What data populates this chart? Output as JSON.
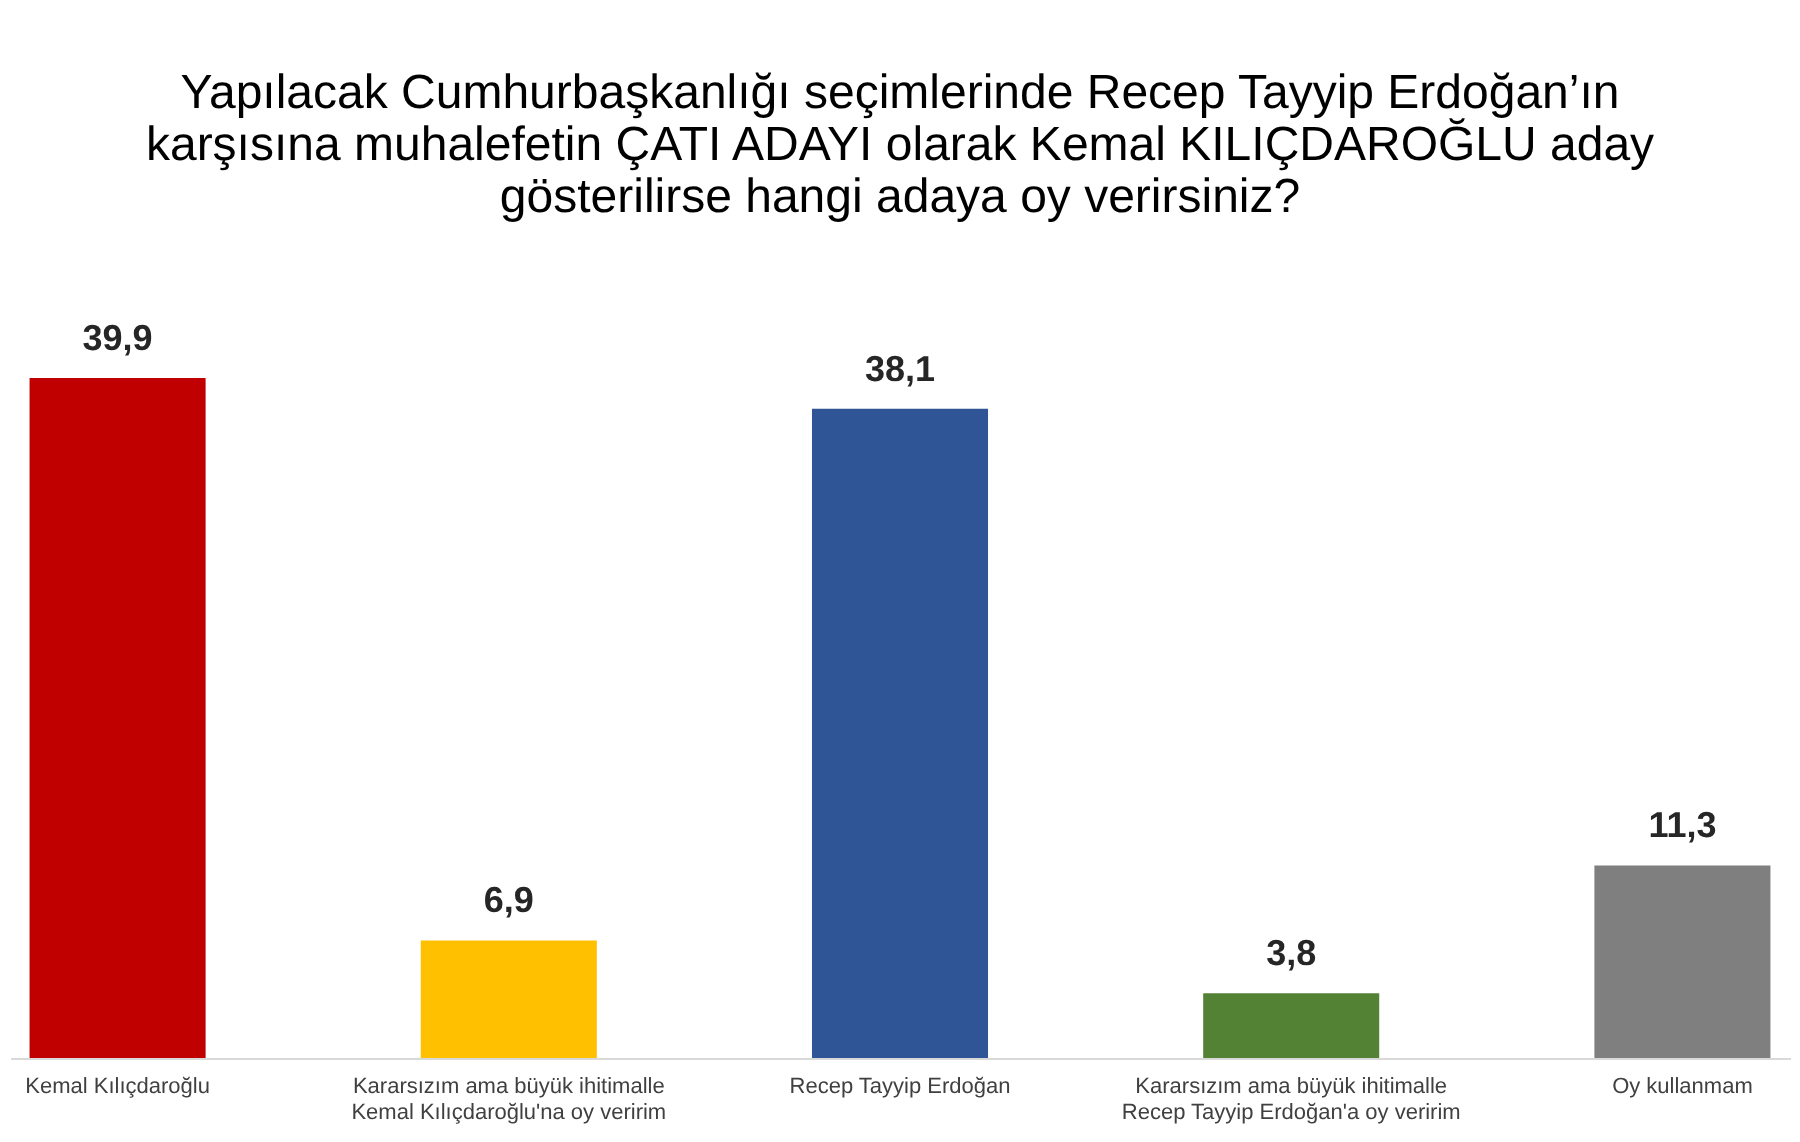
{
  "chart_data": {
    "type": "bar",
    "title": "Yapılacak Cumhurbaşkanlığı seçimlerinde  Recep Tayyip Erdoğan’ın\nkarşısına muhalefetin ÇATI ADAYI olarak Kemal KILIÇDAROĞLU aday\ngösterilirse hangi adaya oy verirsiniz?",
    "categories": [
      "Kemal Kılıçdaroğlu",
      "Kararsızım ama büyük ihitimalle\nKemal Kılıçdaroğlu'na oy veririm",
      "Recep Tayyip Erdoğan",
      "Kararsızım ama büyük ihitimalle\nRecep Tayyip Erdoğan'a oy veririm",
      "Oy kullanmam"
    ],
    "values": [
      39.9,
      6.9,
      38.1,
      3.8,
      11.3
    ],
    "colors": [
      "#c00000",
      "#ffc000",
      "#2f5597",
      "#548235",
      "#7f7f7f"
    ],
    "value_labels": [
      "39,9",
      "6,9",
      "38,1",
      "3,8",
      "11,3"
    ],
    "grid": false,
    "tick_labels": "x"
  }
}
